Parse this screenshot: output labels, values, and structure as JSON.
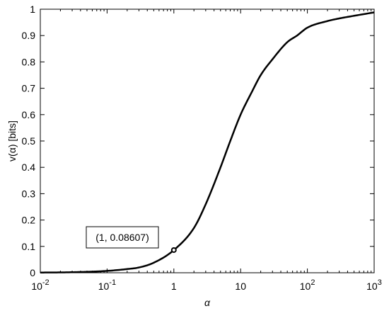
{
  "chart_data": {
    "type": "line",
    "xscale": "log",
    "xlim": [
      0.01,
      1000
    ],
    "ylim": [
      0,
      1
    ],
    "grid": false,
    "xlabel": "α",
    "ylabel": "v(α)  [bits]",
    "x_ticks": [
      {
        "value": 0.01,
        "base": "10",
        "exp": "-2"
      },
      {
        "value": 0.1,
        "base": "10",
        "exp": "-1"
      },
      {
        "value": 1,
        "base": "1",
        "exp": ""
      },
      {
        "value": 10,
        "base": "10",
        "exp": ""
      },
      {
        "value": 100,
        "base": "10",
        "exp": "2"
      },
      {
        "value": 1000,
        "base": "10",
        "exp": "3"
      }
    ],
    "y_ticks": [
      {
        "value": 0,
        "label": "0"
      },
      {
        "value": 0.1,
        "label": "0.1"
      },
      {
        "value": 0.2,
        "label": "0.2"
      },
      {
        "value": 0.3,
        "label": "0.3"
      },
      {
        "value": 0.4,
        "label": "0.4"
      },
      {
        "value": 0.5,
        "label": "0.5"
      },
      {
        "value": 0.6,
        "label": "0.6"
      },
      {
        "value": 0.7,
        "label": "0.7"
      },
      {
        "value": 0.8,
        "label": "0.8"
      },
      {
        "value": 0.9,
        "label": "0.9"
      },
      {
        "value": 1,
        "label": "1"
      }
    ],
    "series": [
      {
        "color": "#000000",
        "x": [
          0.01,
          0.03,
          0.1,
          0.2,
          0.3,
          0.5,
          1,
          2,
          3,
          5,
          7,
          10,
          15,
          20,
          30,
          50,
          70,
          100,
          200,
          300,
          500,
          1000
        ],
        "y": [
          0.0007,
          0.002,
          0.007,
          0.014,
          0.02,
          0.038,
          0.086,
          0.17,
          0.26,
          0.4,
          0.5,
          0.6,
          0.69,
          0.75,
          0.81,
          0.875,
          0.9,
          0.93,
          0.955,
          0.965,
          0.975,
          0.988
        ]
      }
    ],
    "marker": {
      "x": 1,
      "y": 0.08607
    },
    "annotation": {
      "text": "(1, 0.08607)"
    }
  }
}
